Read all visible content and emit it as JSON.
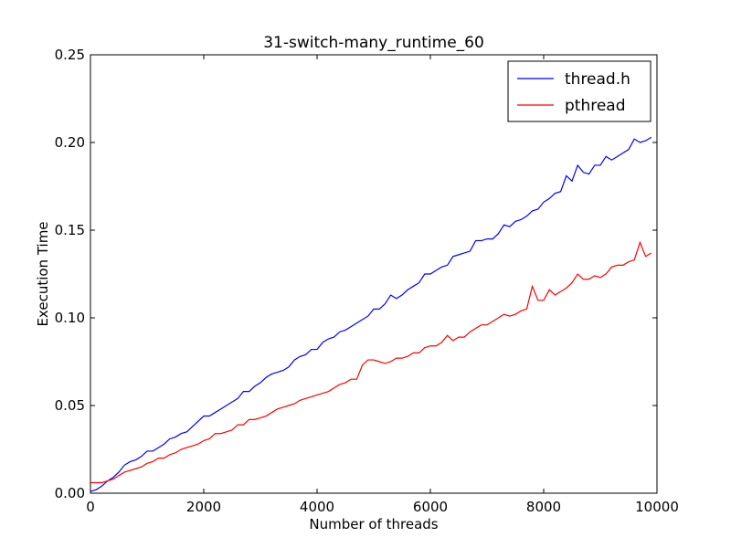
{
  "chart_data": {
    "type": "line",
    "title": "31-switch-many_runtime_60",
    "xlabel": "Number of threads",
    "ylabel": "Execution Time",
    "xlim": [
      0,
      10000
    ],
    "ylim": [
      0,
      0.25
    ],
    "x_ticks": [
      0,
      2000,
      4000,
      6000,
      8000,
      10000
    ],
    "x_tick_labels": [
      "0",
      "2000",
      "4000",
      "6000",
      "8000",
      "10000"
    ],
    "y_ticks": [
      0,
      0.05,
      0.1,
      0.15,
      0.2,
      0.25
    ],
    "y_tick_labels": [
      "0.00",
      "0.05",
      "0.10",
      "0.15",
      "0.20",
      "0.25"
    ],
    "grid": false,
    "legend_position": "top-right",
    "series": [
      {
        "name": "thread.h",
        "color": "#0000ff",
        "x": [
          0,
          100,
          200,
          300,
          400,
          500,
          600,
          700,
          800,
          900,
          1000,
          1100,
          1200,
          1300,
          1400,
          1500,
          1600,
          1700,
          1800,
          1900,
          2000,
          2100,
          2200,
          2300,
          2400,
          2500,
          2600,
          2700,
          2800,
          2900,
          3000,
          3100,
          3200,
          3300,
          3400,
          3500,
          3600,
          3700,
          3800,
          3900,
          4000,
          4100,
          4200,
          4300,
          4400,
          4500,
          4600,
          4700,
          4800,
          4900,
          5000,
          5100,
          5200,
          5300,
          5400,
          5500,
          5600,
          5700,
          5800,
          5900,
          6000,
          6100,
          6200,
          6300,
          6400,
          6500,
          6600,
          6700,
          6800,
          6900,
          7000,
          7100,
          7200,
          7300,
          7400,
          7500,
          7600,
          7700,
          7800,
          7900,
          8000,
          8100,
          8200,
          8300,
          8400,
          8500,
          8600,
          8700,
          8800,
          8900,
          9000,
          9100,
          9200,
          9300,
          9400,
          9500,
          9600,
          9700,
          9800,
          9900
        ],
        "y": [
          0.001,
          0.002,
          0.004,
          0.007,
          0.009,
          0.012,
          0.016,
          0.018,
          0.019,
          0.021,
          0.024,
          0.024,
          0.026,
          0.028,
          0.031,
          0.032,
          0.034,
          0.035,
          0.038,
          0.041,
          0.044,
          0.044,
          0.046,
          0.048,
          0.05,
          0.052,
          0.054,
          0.058,
          0.058,
          0.061,
          0.063,
          0.066,
          0.068,
          0.069,
          0.07,
          0.072,
          0.076,
          0.078,
          0.079,
          0.082,
          0.082,
          0.086,
          0.088,
          0.089,
          0.092,
          0.093,
          0.095,
          0.097,
          0.099,
          0.101,
          0.105,
          0.105,
          0.108,
          0.113,
          0.111,
          0.113,
          0.116,
          0.118,
          0.12,
          0.125,
          0.125,
          0.127,
          0.129,
          0.13,
          0.135,
          0.136,
          0.137,
          0.138,
          0.144,
          0.144,
          0.145,
          0.145,
          0.148,
          0.153,
          0.152,
          0.155,
          0.156,
          0.158,
          0.161,
          0.162,
          0.166,
          0.168,
          0.171,
          0.172,
          0.181,
          0.178,
          0.187,
          0.183,
          0.182,
          0.187,
          0.187,
          0.192,
          0.19,
          0.192,
          0.194,
          0.196,
          0.202,
          0.2,
          0.201,
          0.203
        ]
      },
      {
        "name": "pthread",
        "color": "#ff0000",
        "x": [
          0,
          100,
          200,
          300,
          400,
          500,
          600,
          700,
          800,
          900,
          1000,
          1100,
          1200,
          1300,
          1400,
          1500,
          1600,
          1700,
          1800,
          1900,
          2000,
          2100,
          2200,
          2300,
          2400,
          2500,
          2600,
          2700,
          2800,
          2900,
          3000,
          3100,
          3200,
          3300,
          3400,
          3500,
          3600,
          3700,
          3800,
          3900,
          4000,
          4100,
          4200,
          4300,
          4400,
          4500,
          4600,
          4700,
          4800,
          4900,
          5000,
          5100,
          5200,
          5300,
          5400,
          5500,
          5600,
          5700,
          5800,
          5900,
          6000,
          6100,
          6200,
          6300,
          6400,
          6500,
          6600,
          6700,
          6800,
          6900,
          7000,
          7100,
          7200,
          7300,
          7400,
          7500,
          7600,
          7700,
          7800,
          7900,
          8000,
          8100,
          8200,
          8300,
          8400,
          8500,
          8600,
          8700,
          8800,
          8900,
          9000,
          9100,
          9200,
          9300,
          9400,
          9500,
          9600,
          9700,
          9800,
          9900
        ],
        "y": [
          0.006,
          0.006,
          0.006,
          0.007,
          0.008,
          0.01,
          0.012,
          0.013,
          0.014,
          0.015,
          0.017,
          0.018,
          0.02,
          0.02,
          0.022,
          0.023,
          0.025,
          0.026,
          0.027,
          0.028,
          0.03,
          0.031,
          0.034,
          0.034,
          0.035,
          0.036,
          0.039,
          0.039,
          0.042,
          0.042,
          0.043,
          0.044,
          0.046,
          0.048,
          0.049,
          0.05,
          0.051,
          0.053,
          0.054,
          0.055,
          0.056,
          0.057,
          0.058,
          0.06,
          0.062,
          0.063,
          0.065,
          0.065,
          0.073,
          0.076,
          0.076,
          0.075,
          0.074,
          0.075,
          0.077,
          0.077,
          0.078,
          0.08,
          0.08,
          0.083,
          0.084,
          0.084,
          0.086,
          0.09,
          0.087,
          0.089,
          0.089,
          0.092,
          0.094,
          0.096,
          0.096,
          0.098,
          0.1,
          0.102,
          0.101,
          0.102,
          0.104,
          0.105,
          0.118,
          0.11,
          0.11,
          0.116,
          0.113,
          0.115,
          0.117,
          0.12,
          0.125,
          0.122,
          0.122,
          0.124,
          0.123,
          0.125,
          0.129,
          0.13,
          0.13,
          0.132,
          0.133,
          0.143,
          0.135,
          0.137
        ]
      }
    ]
  }
}
